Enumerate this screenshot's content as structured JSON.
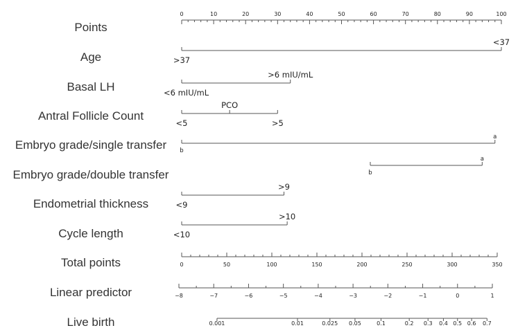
{
  "chart_data": {
    "type": "nomogram",
    "rows": [
      {
        "label": "Points",
        "kind": "scale",
        "key": "points"
      },
      {
        "label": "Age",
        "kind": "variable",
        "key": "age"
      },
      {
        "label": "Basal LH",
        "kind": "variable",
        "key": "basal_lh"
      },
      {
        "label": "Antral Follicle Count",
        "kind": "variable",
        "key": "afc"
      },
      {
        "label": "Embryo grade/single transfer",
        "kind": "variable",
        "key": "embryo_single"
      },
      {
        "label": "Embryo grade/double transfer",
        "kind": "variable",
        "key": "embryo_double"
      },
      {
        "label": "Endometrial thickness",
        "kind": "variable",
        "key": "endometrial"
      },
      {
        "label": "Cycle length",
        "kind": "variable",
        "key": "cycle"
      },
      {
        "label": "Total points",
        "kind": "scale",
        "key": "total"
      },
      {
        "label": "Linear predictor",
        "kind": "scale",
        "key": "lp"
      },
      {
        "label": "Live birth",
        "kind": "scale",
        "key": "live"
      }
    ],
    "points_scale": {
      "min": 0,
      "max": 100,
      "major_ticks": [
        0,
        10,
        20,
        30,
        40,
        50,
        60,
        70,
        80,
        90,
        100
      ],
      "tick_labels": [
        "0",
        "10",
        "20",
        "30",
        "40",
        "50",
        "60",
        "70",
        "80",
        "90",
        "100"
      ],
      "minor_step": 2
    },
    "variables": {
      "age": {
        "range": [
          0,
          100
        ],
        "levels": [
          {
            "label": ">37",
            "points": 0,
            "label_pos": "below"
          },
          {
            "label": "<37",
            "points": 100,
            "label_pos": "above"
          }
        ]
      },
      "basal_lh": {
        "range": [
          0,
          34
        ],
        "levels": [
          {
            "label": "<6 mIU/mL",
            "points": 0,
            "label_pos": "below"
          },
          {
            "label": ">6 mIU/mL",
            "points": 34,
            "label_pos": "above"
          }
        ]
      },
      "afc": {
        "range": [
          0,
          30
        ],
        "levels": [
          {
            "label": "<5",
            "points": 0,
            "label_pos": "below"
          },
          {
            "label": "PCO",
            "points": 15,
            "label_pos": "above"
          },
          {
            "label": ">5",
            "points": 30,
            "label_pos": "below"
          }
        ]
      },
      "embryo_single": {
        "range": [
          0,
          98
        ],
        "levels": [
          {
            "label": "b",
            "points": 0,
            "label_pos": "below"
          },
          {
            "label": "a",
            "points": 98,
            "label_pos": "above"
          }
        ]
      },
      "embryo_double": {
        "range": [
          59,
          94
        ],
        "levels": [
          {
            "label": "b",
            "points": 59,
            "label_pos": "below"
          },
          {
            "label": "a",
            "points": 94,
            "label_pos": "above"
          }
        ]
      },
      "endometrial": {
        "range": [
          0,
          32
        ],
        "levels": [
          {
            "label": "<9",
            "points": 0,
            "label_pos": "below"
          },
          {
            "label": ">9",
            "points": 32,
            "label_pos": "above"
          }
        ]
      },
      "cycle": {
        "range": [
          0,
          33
        ],
        "levels": [
          {
            "label": "<10",
            "points": 0,
            "label_pos": "below"
          },
          {
            "label": ">10",
            "points": 33,
            "label_pos": "above"
          }
        ]
      }
    },
    "total_points": {
      "min": 0,
      "max": 350,
      "major_ticks": [
        0,
        50,
        100,
        150,
        200,
        250,
        300,
        350
      ],
      "tick_labels": [
        "0",
        "50",
        "100",
        "150",
        "200",
        "250",
        "300",
        "350"
      ],
      "minor_step": 10
    },
    "linear_predictor": {
      "min": -8,
      "max": 1,
      "major_ticks": [
        -8,
        -7,
        -6,
        -5,
        -4,
        -3,
        -2,
        -1,
        0,
        1
      ],
      "tick_labels": [
        "−8",
        "−7",
        "−6",
        "−5",
        "−4",
        "−3",
        "−2",
        "−1",
        "0",
        "1"
      ],
      "minor_step": 0.5
    },
    "live_birth": {
      "ticks": [
        {
          "label": "0.001",
          "lp": -6.906
        },
        {
          "label": "0.01",
          "lp": -4.595
        },
        {
          "label": "0.025",
          "lp": -3.664
        },
        {
          "label": "0.05",
          "lp": -2.944
        },
        {
          "label": "0.1",
          "lp": -2.197
        },
        {
          "label": "0.2",
          "lp": -1.386
        },
        {
          "label": "0.3",
          "lp": -0.847
        },
        {
          "label": "0.4",
          "lp": -0.405
        },
        {
          "label": "0.5",
          "lp": 0
        },
        {
          "label": "0.6",
          "lp": 0.405
        },
        {
          "label": "0.7",
          "lp": 0.847
        }
      ]
    }
  }
}
